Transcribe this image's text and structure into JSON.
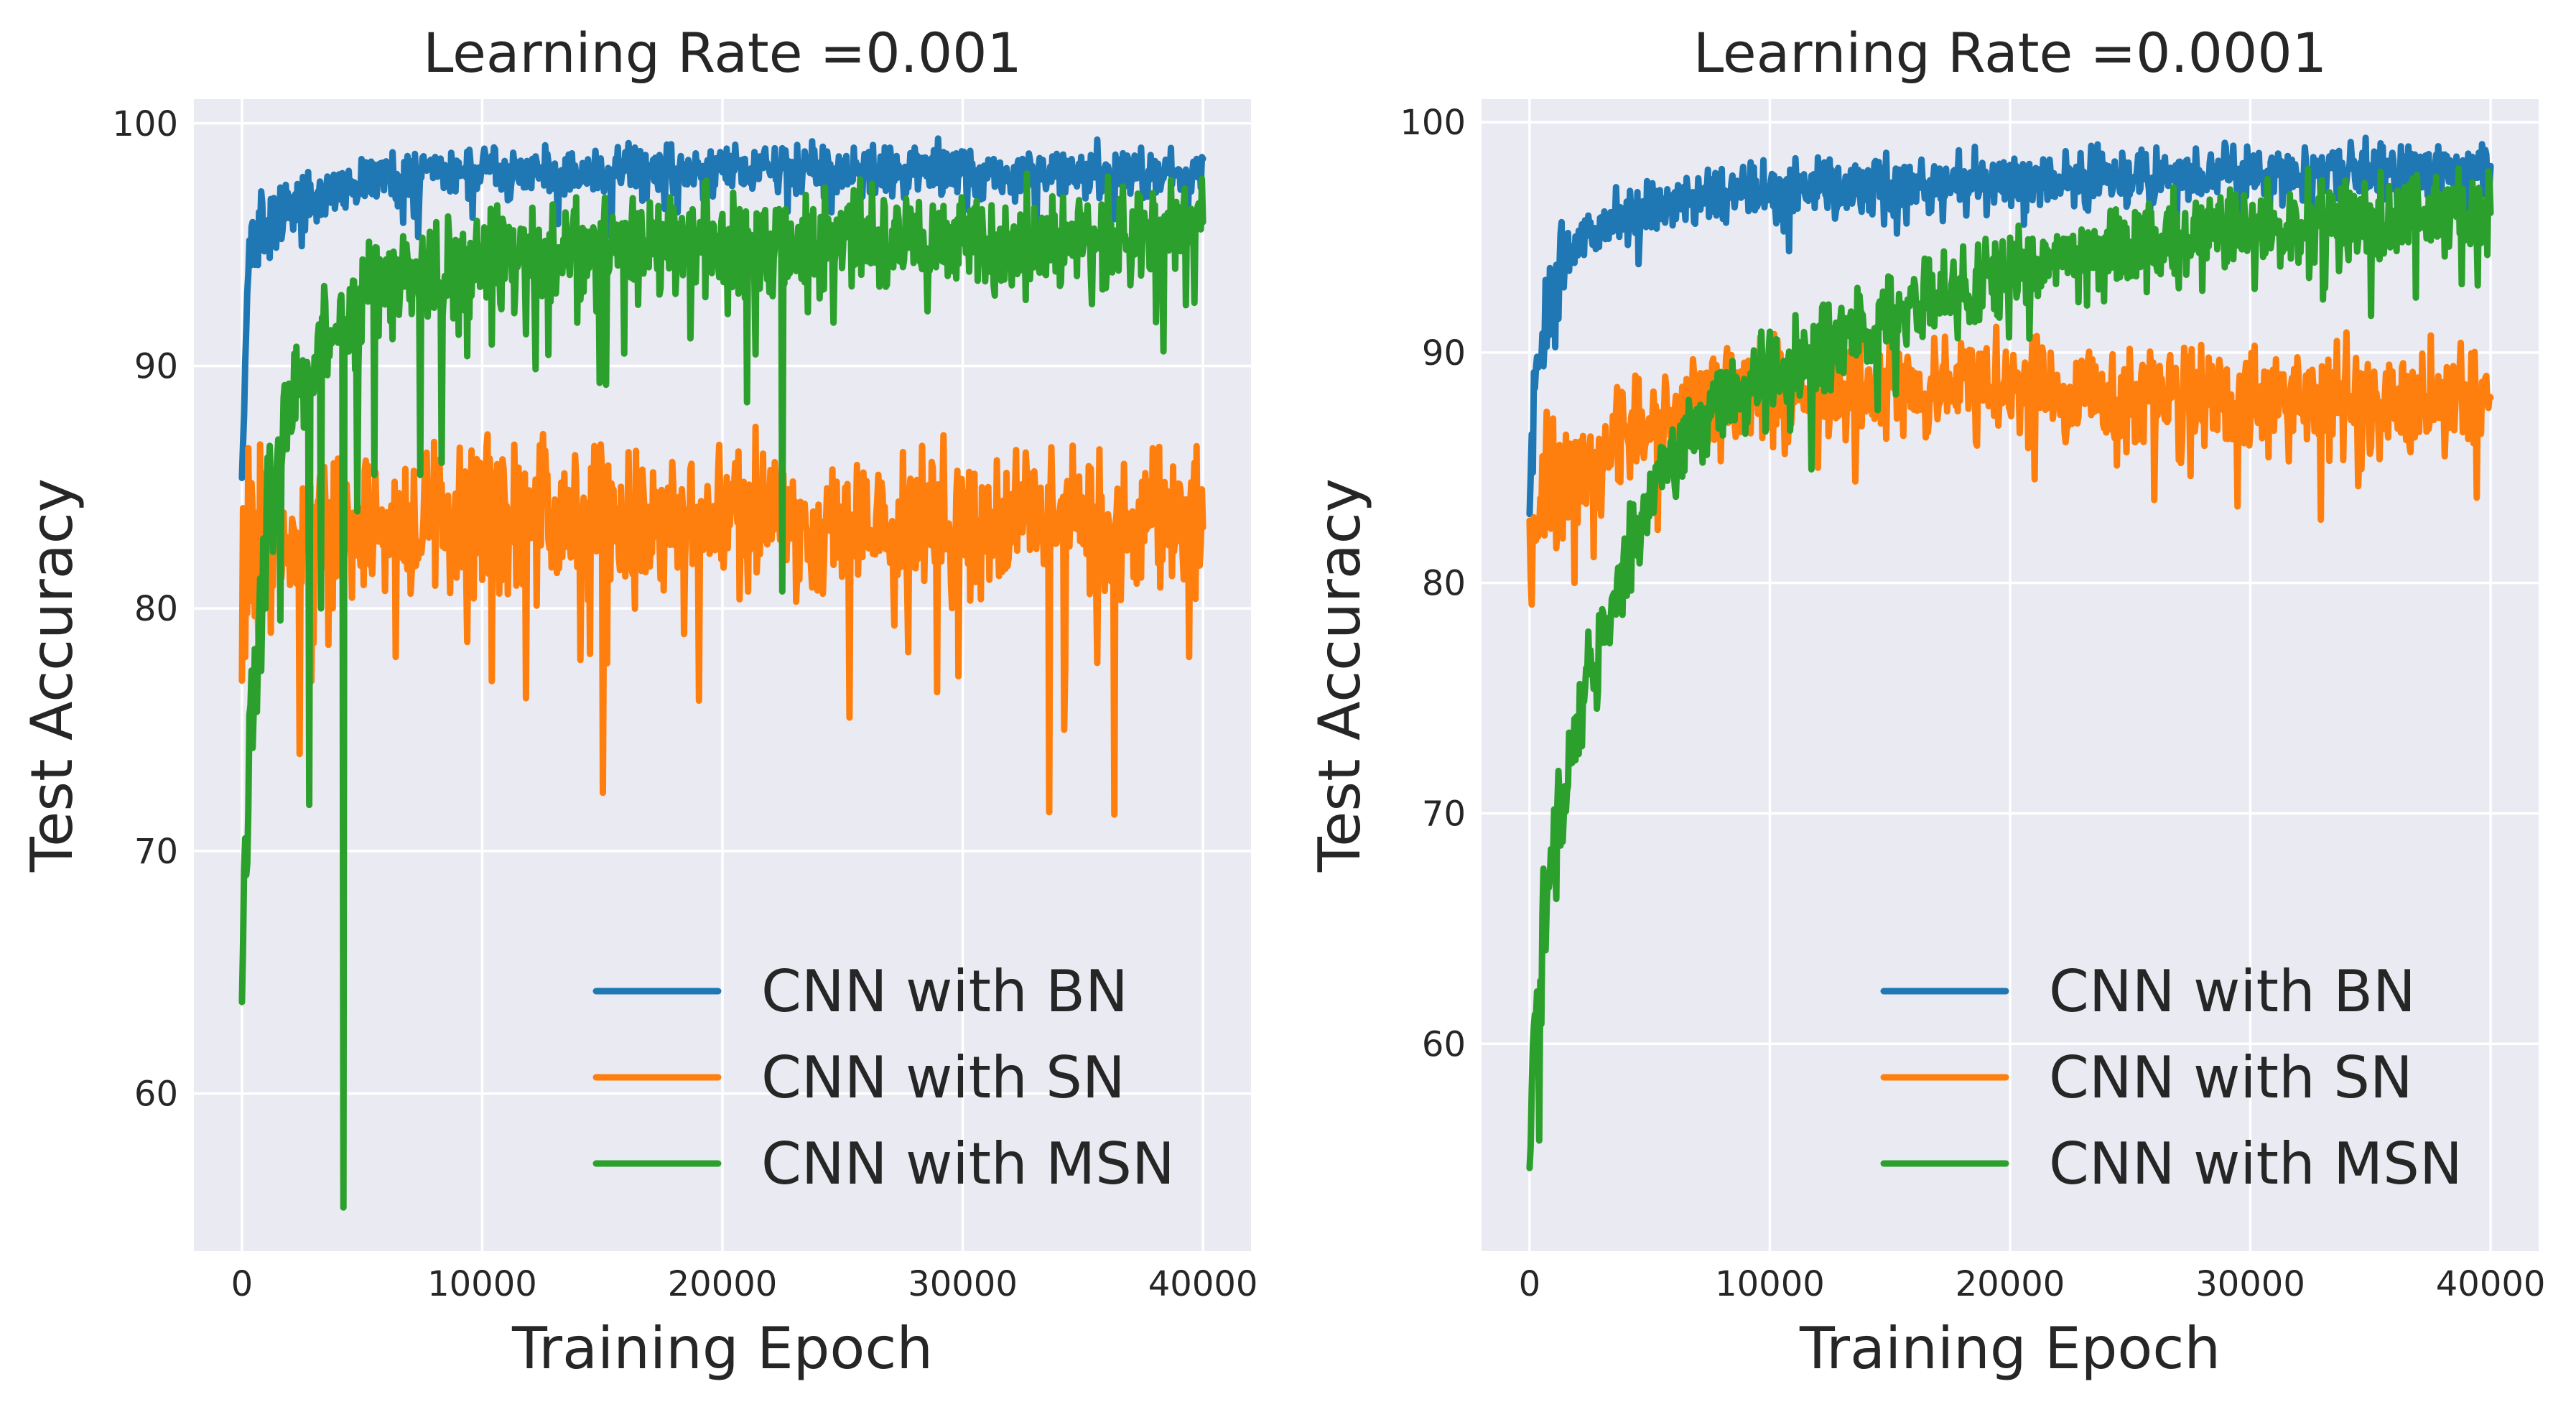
{
  "chart_data": [
    {
      "type": "line",
      "title": "Learning Rate =0.001",
      "xlabel": "Training Epoch",
      "ylabel": "Test Accuracy",
      "xlim": [
        -2000,
        42000
      ],
      "ylim": [
        53.5,
        101.0
      ],
      "xticks": [
        0,
        10000,
        20000,
        30000,
        40000
      ],
      "xtick_labels": [
        "0",
        "10000",
        "20000",
        "30000",
        "40000"
      ],
      "yticks": [
        60,
        70,
        80,
        90,
        100
      ],
      "ytick_labels": [
        "60",
        "70",
        "80",
        "90",
        "100"
      ],
      "grid": true,
      "legend_position": "lower-right",
      "series": [
        {
          "name": "CNN with BN",
          "color": "#1f77b4",
          "x": [
            0,
            250,
            500,
            1000,
            1500,
            2000,
            3000,
            4000,
            5000,
            6000,
            8000,
            10000,
            15000,
            20000,
            25000,
            30000,
            35000,
            40000
          ],
          "y": [
            85.5,
            94.0,
            95.0,
            95.5,
            96.0,
            96.5,
            97.0,
            97.3,
            97.6,
            97.8,
            97.9,
            98.0,
            98.0,
            98.1,
            98.1,
            98.0,
            98.0,
            98.0
          ],
          "noise": 0.5
        },
        {
          "name": "CNN with SN",
          "color": "#ff7f0e",
          "x": [
            0,
            500,
            1000,
            2000,
            4000,
            8000,
            12000,
            16000,
            20000,
            24000,
            28000,
            32000,
            36000,
            40000
          ],
          "y": [
            80.5,
            82.5,
            83.0,
            83.0,
            83.2,
            83.5,
            83.6,
            83.5,
            83.7,
            83.5,
            83.4,
            83.6,
            83.4,
            83.5
          ],
          "noise": 1.4,
          "dips": [
            [
              2400,
              74.0
            ],
            [
              2900,
              77.0
            ],
            [
              11800,
              76.3
            ],
            [
              15000,
              72.4
            ],
            [
              25300,
              75.5
            ],
            [
              33600,
              71.6
            ],
            [
              34200,
              75.0
            ],
            [
              36300,
              71.5
            ],
            [
              39400,
              78.0
            ],
            [
              3600,
              78.5
            ],
            [
              10400,
              77.0
            ],
            [
              19000,
              76.2
            ]
          ]
        },
        {
          "name": "CNN with MSN",
          "color": "#2ca02c",
          "x": [
            0,
            100,
            300,
            600,
            1000,
            1500,
            2000,
            3000,
            4000,
            5000,
            6000,
            8000,
            10000,
            12000,
            15000,
            20000,
            25000,
            30000,
            35000,
            40000
          ],
          "y": [
            65.5,
            68.0,
            74.0,
            78.0,
            83.0,
            86.5,
            88.5,
            90.5,
            92.0,
            92.8,
            93.3,
            93.8,
            94.2,
            94.5,
            94.8,
            95.0,
            95.1,
            95.1,
            95.2,
            95.4
          ],
          "noise": 1.0,
          "dips": [
            [
              4200,
              55.3
            ],
            [
              2800,
              71.9
            ],
            [
              1600,
              79.5
            ],
            [
              3300,
              80.0
            ],
            [
              4800,
              84.0
            ],
            [
              5500,
              85.5
            ],
            [
              7400,
              85.5
            ],
            [
              8300,
              86.0
            ],
            [
              22500,
              80.7
            ],
            [
              14900,
              89.3
            ],
            [
              21000,
              88.5
            ],
            [
              39300,
              92.5
            ]
          ]
        }
      ]
    },
    {
      "type": "line",
      "title": "Learning Rate =0.0001",
      "xlabel": "Training Epoch",
      "ylabel": "Test Accuracy",
      "xlim": [
        -2000,
        42000
      ],
      "ylim": [
        51.0,
        101.0
      ],
      "xticks": [
        0,
        10000,
        20000,
        30000,
        40000
      ],
      "xtick_labels": [
        "0",
        "10000",
        "20000",
        "30000",
        "40000"
      ],
      "yticks": [
        60,
        70,
        80,
        90,
        100
      ],
      "ytick_labels": [
        "60",
        "70",
        "80",
        "90",
        "100"
      ],
      "grid": true,
      "legend_position": "lower-right",
      "series": [
        {
          "name": "CNN with BN",
          "color": "#1f77b4",
          "x": [
            0,
            200,
            500,
            1000,
            2000,
            3000,
            5000,
            8000,
            12000,
            20000,
            30000,
            40000
          ],
          "y": [
            83.5,
            88.0,
            91.0,
            93.0,
            94.8,
            95.5,
            96.3,
            96.8,
            97.2,
            97.5,
            97.7,
            98.0
          ],
          "noise": 0.6,
          "dips": [
            [
              10800,
              94.4
            ],
            [
              15700,
              95.6
            ],
            [
              25800,
              96.0
            ]
          ]
        },
        {
          "name": "CNN with SN",
          "color": "#ff7f0e",
          "x": [
            0,
            200,
            500,
            1000,
            2000,
            4000,
            6000,
            8000,
            10000,
            14000,
            18000,
            22000,
            26000,
            30000,
            34000,
            38000,
            40000
          ],
          "y": [
            79.5,
            82.5,
            83.5,
            84.0,
            85.0,
            86.5,
            87.5,
            88.0,
            88.3,
            88.4,
            88.4,
            88.2,
            88.1,
            88.0,
            87.9,
            88.0,
            88.0
          ],
          "noise": 1.1,
          "dips": [
            [
              26000,
              83.6
            ],
            [
              34500,
              84.2
            ],
            [
              39400,
              83.7
            ],
            [
              12000,
              85.0
            ],
            [
              21000,
              84.5
            ]
          ]
        },
        {
          "name": "CNN with MSN",
          "color": "#2ca02c",
          "x": [
            0,
            150,
            400,
            800,
            1500,
            2500,
            3500,
            5000,
            7000,
            10000,
            13000,
            16000,
            20000,
            24000,
            28000,
            32000,
            36000,
            40000
          ],
          "y": [
            54.0,
            59.0,
            63.0,
            67.0,
            71.5,
            76.0,
            79.5,
            84.0,
            87.0,
            89.0,
            90.5,
            92.0,
            93.5,
            94.5,
            95.2,
            95.6,
            95.8,
            96.0
          ],
          "noise": 0.9,
          "dips": [
            [
              400,
              55.8
            ],
            [
              33000,
              92.3
            ],
            [
              14500,
              87.5
            ]
          ]
        }
      ]
    }
  ]
}
